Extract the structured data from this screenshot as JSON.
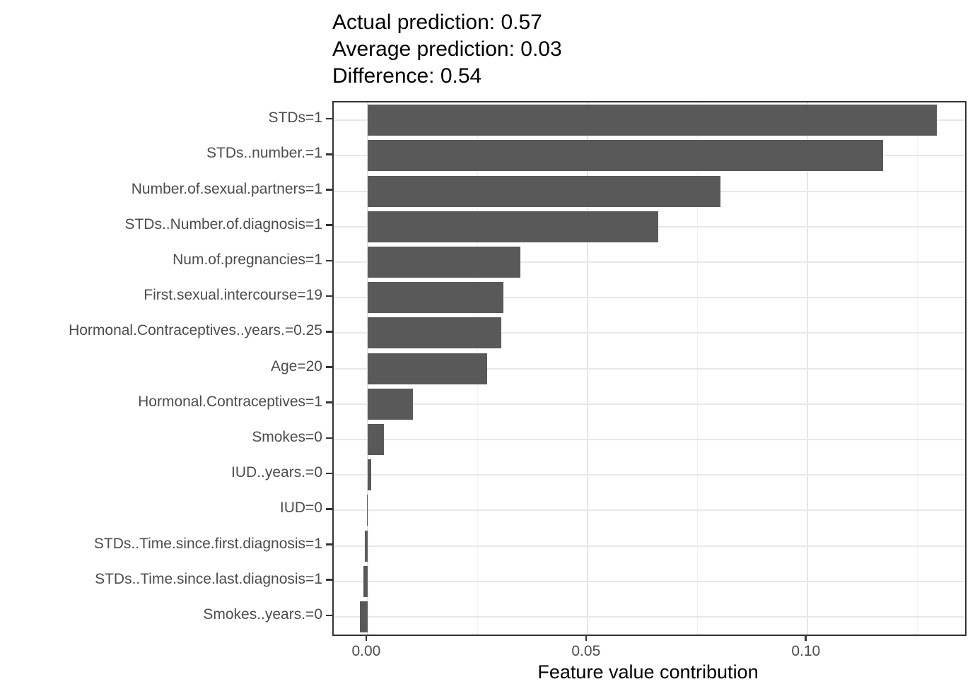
{
  "header": {
    "line1": "Actual prediction: 0.57",
    "line2": "Average prediction: 0.03",
    "line3": "Difference: 0.54"
  },
  "chart_data": {
    "type": "bar",
    "orientation": "horizontal",
    "title": "",
    "xlabel": "Feature value contribution",
    "ylabel": "",
    "categories": [
      "STDs=1",
      "STDs..number.=1",
      "Number.of.sexual.partners=1",
      "STDs..Number.of.diagnosis=1",
      "Num.of.pregnancies=1",
      "First.sexual.intercourse=19",
      "Hormonal.Contraceptives..years.=0.25",
      "Age=20",
      "Hormonal.Contraceptives=1",
      "Smokes=0",
      "IUD..years.=0",
      "IUD=0",
      "STDs..Time.since.first.diagnosis=1",
      "STDs..Time.since.last.diagnosis=1",
      "Smokes..years.=0"
    ],
    "values": [
      0.1295,
      0.1172,
      0.0803,
      0.0661,
      0.0348,
      0.0309,
      0.0304,
      0.0272,
      0.0103,
      0.0037,
      0.0008,
      -0.0002,
      -0.0006,
      -0.001,
      -0.0017
    ],
    "xlim": [
      -0.0077,
      0.1359
    ],
    "x_major_ticks": [
      0.0,
      0.05,
      0.1
    ],
    "x_tick_labels": [
      "0.00",
      "0.05",
      "0.10"
    ],
    "x_minor_ticks": [
      0.025,
      0.075,
      0.125
    ],
    "grid": true,
    "legend": "none",
    "bar_fill": "#595959"
  },
  "colors": {
    "bar": "#595959",
    "panel_border": "#333333",
    "grid_major": "#e8e8e8",
    "grid_minor": "#f1f1f1",
    "axis_text": "#4d4d4d",
    "title_text": "#000000"
  }
}
